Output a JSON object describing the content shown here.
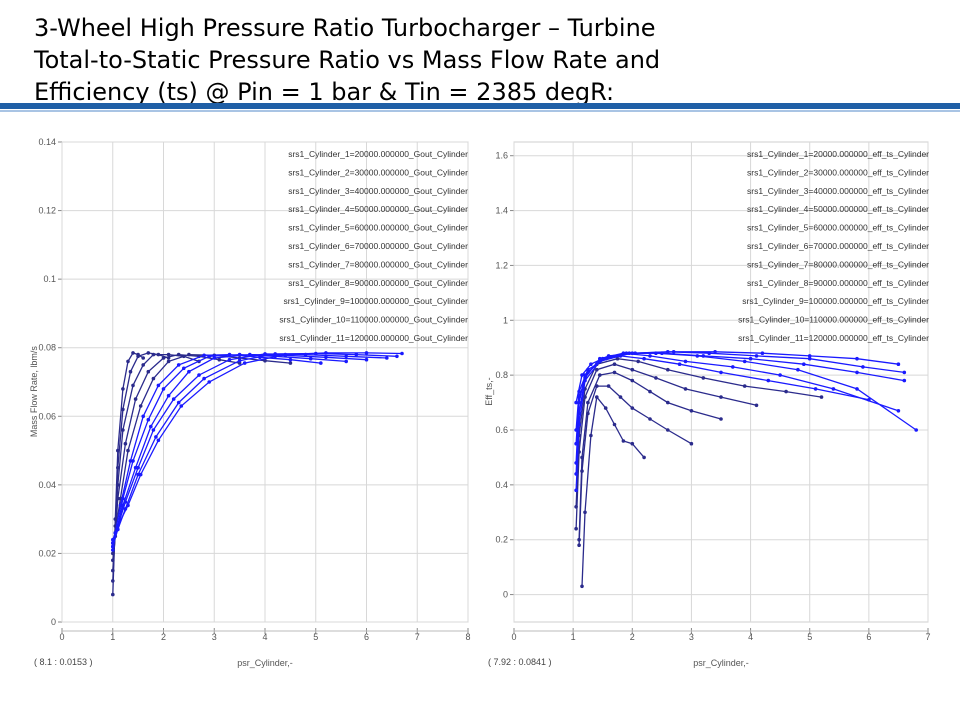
{
  "slide": {
    "title_lines": [
      "3-Wheel High Pressure Ratio Turbocharger – Turbine",
      "Total-to-Static Pressure Ratio vs Mass Flow Rate and",
      "Efficiency (ts) @ Pin = 1 bar & Tin = 2385 degR:"
    ]
  },
  "colors": {
    "series": "#1a1aff",
    "series_dark": "#2b2b8c",
    "grid": "#d8d8d8",
    "banner": "#1f5fa6"
  },
  "chart_data": [
    {
      "type": "line",
      "xlabel": "psr_Cylinder,-",
      "ylabel": "Mass Flow Rate, lbm/s",
      "xlim": [
        0,
        8
      ],
      "ylim": [
        0,
        0.14
      ],
      "xticks": [
        "0",
        "1",
        "2",
        "3",
        "4",
        "5",
        "6",
        "7",
        "8"
      ],
      "yticks": [
        "0",
        "0.02",
        "0.04",
        "0.06",
        "0.08",
        "0.1",
        "0.12",
        "0.14"
      ],
      "coord_readout": "( 8.1   : 0.0153 )",
      "legend_position": "top-right",
      "legend": [
        "srs1_Cylinder_1=20000.000000_Gout_Cylinder",
        "srs1_Cylinder_2=30000.000000_Gout_Cylinder",
        "srs1_Cylinder_3=40000.000000_Gout_Cylinder",
        "srs1_Cylinder_4=50000.000000_Gout_Cylinder",
        "srs1_Cylinder_5=60000.000000_Gout_Cylinder",
        "srs1_Cylinder_6=70000.000000_Gout_Cylinder",
        "srs1_Cylinder_7=80000.000000_Gout_Cylinder",
        "srs1_Cylinder_8=90000.000000_Gout_Cylinder",
        "srs1_Cylinder_9=100000.000000_Gout_Cylinder",
        "srs1_Cylinder_10=110000.000000_Gout_Cylinder",
        "srs1_Cylinder_11=120000.000000_Gout_Cylinder"
      ],
      "series": [
        {
          "x": [
            1.0,
            1.05,
            1.1,
            1.2,
            1.3,
            1.4,
            1.5,
            1.6
          ],
          "y": [
            0.008,
            0.03,
            0.05,
            0.068,
            0.076,
            0.0785,
            0.078,
            0.077
          ]
        },
        {
          "x": [
            1.0,
            1.05,
            1.1,
            1.2,
            1.35,
            1.5,
            1.7,
            1.9,
            2.1
          ],
          "y": [
            0.012,
            0.028,
            0.045,
            0.062,
            0.073,
            0.0775,
            0.0785,
            0.078,
            0.077
          ]
        },
        {
          "x": [
            1.0,
            1.05,
            1.1,
            1.2,
            1.4,
            1.6,
            1.8,
            2.1,
            2.4,
            2.7
          ],
          "y": [
            0.015,
            0.026,
            0.04,
            0.056,
            0.069,
            0.075,
            0.078,
            0.078,
            0.0775,
            0.076
          ]
        },
        {
          "x": [
            1.0,
            1.05,
            1.1,
            1.25,
            1.45,
            1.7,
            2.0,
            2.3,
            2.7,
            3.1,
            3.5
          ],
          "y": [
            0.018,
            0.025,
            0.036,
            0.052,
            0.065,
            0.073,
            0.077,
            0.078,
            0.0775,
            0.0765,
            0.0755
          ]
        },
        {
          "x": [
            1.0,
            1.05,
            1.15,
            1.3,
            1.55,
            1.8,
            2.1,
            2.5,
            3.0,
            3.5,
            4.0,
            4.5
          ],
          "y": [
            0.02,
            0.026,
            0.036,
            0.05,
            0.063,
            0.071,
            0.076,
            0.078,
            0.0778,
            0.077,
            0.0762,
            0.0755
          ]
        },
        {
          "x": [
            1.0,
            1.05,
            1.15,
            1.35,
            1.6,
            1.9,
            2.3,
            2.8,
            3.3,
            3.9,
            4.5,
            5.1
          ],
          "y": [
            0.021,
            0.026,
            0.034,
            0.047,
            0.06,
            0.069,
            0.075,
            0.0778,
            0.078,
            0.0772,
            0.0765,
            0.0755
          ]
        },
        {
          "x": [
            1.0,
            1.1,
            1.2,
            1.4,
            1.7,
            2.0,
            2.4,
            2.9,
            3.5,
            4.2,
            4.9,
            5.6
          ],
          "y": [
            0.022,
            0.028,
            0.036,
            0.047,
            0.059,
            0.068,
            0.074,
            0.0775,
            0.078,
            0.0775,
            0.0768,
            0.076
          ]
        },
        {
          "x": [
            1.0,
            1.1,
            1.2,
            1.45,
            1.75,
            2.1,
            2.5,
            3.0,
            3.7,
            4.4,
            5.2,
            6.0
          ],
          "y": [
            0.022,
            0.027,
            0.034,
            0.045,
            0.057,
            0.066,
            0.073,
            0.077,
            0.078,
            0.0778,
            0.0772,
            0.0765
          ]
        },
        {
          "x": [
            1.0,
            1.1,
            1.25,
            1.5,
            1.8,
            2.2,
            2.7,
            3.3,
            4.0,
            4.8,
            5.6,
            6.4
          ],
          "y": [
            0.023,
            0.028,
            0.035,
            0.045,
            0.056,
            0.065,
            0.072,
            0.0765,
            0.0782,
            0.078,
            0.0775,
            0.077
          ]
        },
        {
          "x": [
            1.0,
            1.1,
            1.25,
            1.5,
            1.85,
            2.3,
            2.8,
            3.5,
            4.2,
            5.0,
            5.8,
            6.6
          ],
          "y": [
            0.023,
            0.027,
            0.033,
            0.043,
            0.054,
            0.064,
            0.071,
            0.0762,
            0.0782,
            0.0783,
            0.078,
            0.0775
          ]
        },
        {
          "x": [
            1.0,
            1.1,
            1.3,
            1.55,
            1.9,
            2.35,
            2.9,
            3.6,
            4.4,
            5.2,
            6.0,
            6.7
          ],
          "y": [
            0.024,
            0.028,
            0.034,
            0.043,
            0.053,
            0.063,
            0.07,
            0.0755,
            0.078,
            0.0785,
            0.0785,
            0.0783
          ]
        }
      ]
    },
    {
      "type": "line",
      "xlabel": "psr_Cylinder,-",
      "ylabel": "Eff_ts,-",
      "xlim": [
        0,
        7
      ],
      "ylim": [
        -0.1,
        1.65
      ],
      "xticks": [
        "0",
        "1",
        "2",
        "3",
        "4",
        "5",
        "6",
        "7"
      ],
      "yticks": [
        "0",
        "0.2",
        "0.4",
        "0.6",
        "0.8",
        "1",
        "1.2",
        "1.4",
        "1.6"
      ],
      "coord_readout": "( 7.92   : 0.0841 )",
      "legend_position": "top-right",
      "legend": [
        "srs1_Cylinder_1=20000.000000_eff_ts_Cylinder",
        "srs1_Cylinder_2=30000.000000_eff_ts_Cylinder",
        "srs1_Cylinder_3=40000.000000_eff_ts_Cylinder",
        "srs1_Cylinder_4=50000.000000_eff_ts_Cylinder",
        "srs1_Cylinder_5=60000.000000_eff_ts_Cylinder",
        "srs1_Cylinder_6=70000.000000_eff_ts_Cylinder",
        "srs1_Cylinder_7=80000.000000_eff_ts_Cylinder",
        "srs1_Cylinder_8=90000.000000_eff_ts_Cylinder",
        "srs1_Cylinder_9=100000.000000_eff_ts_Cylinder",
        "srs1_Cylinder_10=110000.000000_eff_ts_Cylinder",
        "srs1_Cylinder_11=120000.000000_eff_ts_Cylinder"
      ],
      "series": [
        {
          "x": [
            1.15,
            1.2,
            1.3,
            1.4,
            1.55,
            1.7,
            1.85,
            2.0,
            2.2
          ],
          "y": [
            0.03,
            0.3,
            0.58,
            0.72,
            0.68,
            0.62,
            0.56,
            0.55,
            0.5
          ]
        },
        {
          "x": [
            1.1,
            1.15,
            1.25,
            1.4,
            1.6,
            1.8,
            2.0,
            2.3,
            2.6,
            3.0
          ],
          "y": [
            0.18,
            0.45,
            0.66,
            0.76,
            0.76,
            0.72,
            0.68,
            0.64,
            0.6,
            0.55
          ]
        },
        {
          "x": [
            1.1,
            1.15,
            1.25,
            1.45,
            1.7,
            2.0,
            2.3,
            2.6,
            3.0,
            3.5
          ],
          "y": [
            0.2,
            0.5,
            0.7,
            0.8,
            0.81,
            0.78,
            0.74,
            0.7,
            0.67,
            0.64
          ]
        },
        {
          "x": [
            1.05,
            1.1,
            1.2,
            1.4,
            1.7,
            2.0,
            2.4,
            2.9,
            3.5,
            4.1
          ],
          "y": [
            0.24,
            0.52,
            0.72,
            0.82,
            0.84,
            0.82,
            0.79,
            0.75,
            0.72,
            0.69
          ]
        },
        {
          "x": [
            1.05,
            1.1,
            1.2,
            1.4,
            1.75,
            2.1,
            2.6,
            3.2,
            3.9,
            4.6,
            5.2
          ],
          "y": [
            0.32,
            0.58,
            0.75,
            0.84,
            0.86,
            0.85,
            0.82,
            0.79,
            0.76,
            0.74,
            0.72
          ]
        },
        {
          "x": [
            1.05,
            1.1,
            1.2,
            1.45,
            1.8,
            2.2,
            2.8,
            3.5,
            4.3,
            5.1,
            6.0
          ],
          "y": [
            0.38,
            0.62,
            0.78,
            0.85,
            0.87,
            0.86,
            0.84,
            0.81,
            0.78,
            0.75,
            0.71
          ]
        },
        {
          "x": [
            1.05,
            1.1,
            1.2,
            1.45,
            1.85,
            2.3,
            2.9,
            3.7,
            4.5,
            5.4,
            6.5
          ],
          "y": [
            0.44,
            0.66,
            0.79,
            0.86,
            0.88,
            0.87,
            0.85,
            0.83,
            0.8,
            0.75,
            0.67
          ]
        },
        {
          "x": [
            1.05,
            1.1,
            1.2,
            1.5,
            1.9,
            2.4,
            3.1,
            3.9,
            4.8,
            5.8,
            6.8
          ],
          "y": [
            0.48,
            0.7,
            0.8,
            0.86,
            0.88,
            0.88,
            0.87,
            0.85,
            0.82,
            0.75,
            0.6
          ]
        },
        {
          "x": [
            1.05,
            1.1,
            1.25,
            1.5,
            1.95,
            2.5,
            3.2,
            4.0,
            4.9,
            5.8,
            6.6
          ],
          "y": [
            0.55,
            0.72,
            0.81,
            0.86,
            0.88,
            0.88,
            0.87,
            0.86,
            0.84,
            0.81,
            0.78
          ]
        },
        {
          "x": [
            1.05,
            1.1,
            1.25,
            1.55,
            2.0,
            2.6,
            3.3,
            4.1,
            5.0,
            5.9,
            6.6
          ],
          "y": [
            0.6,
            0.74,
            0.82,
            0.86,
            0.88,
            0.885,
            0.88,
            0.87,
            0.86,
            0.83,
            0.81
          ]
        },
        {
          "x": [
            1.05,
            1.15,
            1.3,
            1.6,
            2.05,
            2.7,
            3.4,
            4.2,
            5.0,
            5.8,
            6.5
          ],
          "y": [
            0.7,
            0.8,
            0.84,
            0.87,
            0.88,
            0.885,
            0.885,
            0.88,
            0.87,
            0.86,
            0.84
          ]
        }
      ]
    }
  ]
}
